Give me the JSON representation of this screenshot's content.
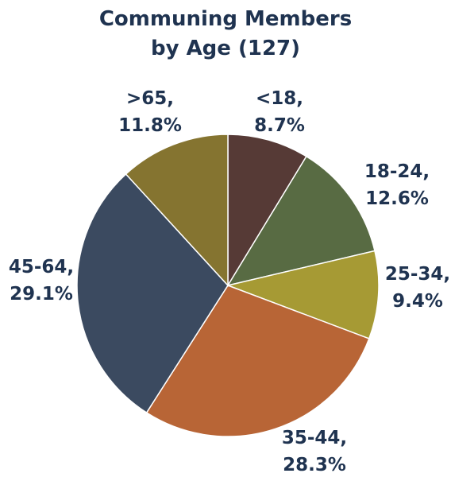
{
  "chart_data": {
    "type": "pie",
    "title_line1": "Communing Members",
    "title_line2": "by Age (127)",
    "legend": "none",
    "slices": [
      {
        "category": "<18",
        "value": 8.7,
        "label_line1": "<18,",
        "label_line2": "8.7%",
        "color": "#563a36"
      },
      {
        "category": "18-24",
        "value": 12.6,
        "label_line1": "18-24,",
        "label_line2": "12.6%",
        "color": "#586b43"
      },
      {
        "category": "25-34",
        "value": 9.4,
        "label_line1": "25-34,",
        "label_line2": "9.4%",
        "color": "#a69a34"
      },
      {
        "category": "35-44",
        "value": 28.3,
        "label_line1": "35-44,",
        "label_line2": "28.3%",
        "color": "#b86536"
      },
      {
        "category": "45-64",
        "value": 29.1,
        "label_line1": "45-64,",
        "label_line2": "29.1%",
        "color": "#3b4a60"
      },
      {
        "category": ">65",
        "value": 11.8,
        "label_line1": ">65,",
        "label_line2": "11.8%",
        "color": "#857430"
      }
    ]
  }
}
